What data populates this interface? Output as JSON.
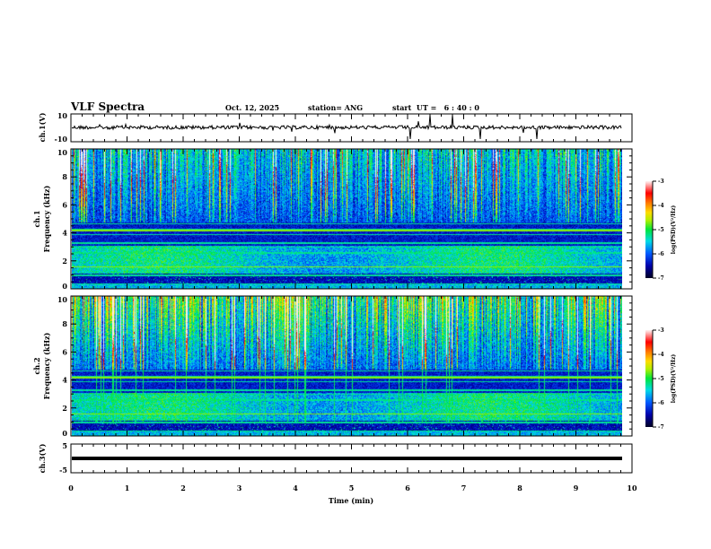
{
  "header": {
    "title": "VLF Spectra",
    "date": "Oct. 12, 2025",
    "station": "station= ANG",
    "start_ut": "start  UT =   6 : 40 : 0"
  },
  "chart_data": [
    {
      "type": "line",
      "name": "ch1-waveform",
      "ylabel": "ch.1(V)",
      "ylim": [
        -10,
        10
      ],
      "ytick_labels": [
        "10",
        "-10"
      ],
      "xlim": [
        0,
        10
      ],
      "description_values": {
        "baseline": 0,
        "noise_amplitude": 1,
        "spike_times_min": [
          6.05,
          6.4,
          6.8,
          7.3,
          8.3
        ]
      }
    },
    {
      "type": "heatmap",
      "name": "ch1-spectrogram",
      "ylabel": "ch.1\nFrequency (kHz)",
      "ylabel_lines": [
        "ch.1",
        "Frequency (kHz)"
      ],
      "ylim": [
        0,
        10
      ],
      "ytick_labels": [
        "0",
        "2",
        "4",
        "6",
        "8",
        "10"
      ],
      "xlim": [
        0,
        9.8
      ],
      "colorbar": {
        "label": "log(PSD)(V²/Hz)",
        "range": [
          -7,
          -3
        ],
        "tick_labels": [
          "-3",
          "-4",
          "-5",
          "-6",
          "-7"
        ]
      },
      "intensity": 0.6
    },
    {
      "type": "heatmap",
      "name": "ch2-spectrogram",
      "ylabel_lines": [
        "ch.2",
        "Frequency (kHz)"
      ],
      "ylim": [
        0,
        10
      ],
      "ytick_labels": [
        "0",
        "2",
        "4",
        "6",
        "8",
        "10"
      ],
      "xlim": [
        0,
        9.8
      ],
      "colorbar": {
        "label": "log(PSD)(V²/Hz)",
        "range": [
          -7,
          -3
        ],
        "tick_labels": [
          "-3",
          "-4",
          "-5",
          "-6",
          "-7"
        ]
      },
      "intensity": 1.0
    },
    {
      "type": "line",
      "name": "ch3-waveform",
      "ylabel": "ch.3(V)",
      "ylim": [
        -5,
        5
      ],
      "ytick_labels": [
        "5",
        "-5"
      ],
      "xlim": [
        0,
        10
      ],
      "description_values": {
        "constant_value": 0.6
      }
    }
  ],
  "xaxis": {
    "label": "Time (min)",
    "tick_labels": [
      "0",
      "1",
      "2",
      "3",
      "4",
      "5",
      "6",
      "7",
      "8",
      "9",
      "10"
    ],
    "range": [
      0,
      10
    ]
  }
}
